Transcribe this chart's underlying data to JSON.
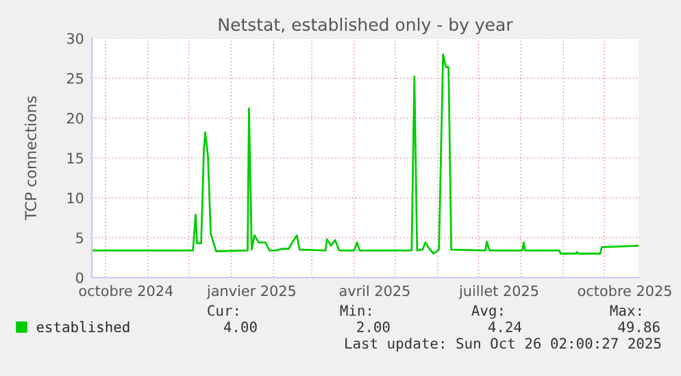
{
  "chart_data": {
    "type": "line",
    "title": "Netstat, established only - by year",
    "ylabel": "TCP connections",
    "xlim": [
      "2024-09-21",
      "2025-10-26"
    ],
    "ylim": [
      0,
      30
    ],
    "yticks": [
      0,
      5,
      10,
      15,
      20,
      25,
      30
    ],
    "xticks": [
      {
        "value": "2024-10-01",
        "label": null
      },
      {
        "value": "2024-10-16",
        "label": "octobre 2024"
      },
      {
        "value": "2024-11-01",
        "label": null
      },
      {
        "value": "2024-12-01",
        "label": null
      },
      {
        "value": "2025-01-01",
        "label": null
      },
      {
        "value": "2025-01-16",
        "label": "janvier 2025"
      },
      {
        "value": "2025-02-01",
        "label": null
      },
      {
        "value": "2025-03-01",
        "label": null
      },
      {
        "value": "2025-04-01",
        "label": null
      },
      {
        "value": "2025-04-16",
        "label": "avril 2025"
      },
      {
        "value": "2025-05-01",
        "label": null
      },
      {
        "value": "2025-06-01",
        "label": null
      },
      {
        "value": "2025-07-01",
        "label": null
      },
      {
        "value": "2025-07-16",
        "label": "juillet 2025"
      },
      {
        "value": "2025-08-01",
        "label": null
      },
      {
        "value": "2025-09-01",
        "label": null
      },
      {
        "value": "2025-10-01",
        "label": null
      },
      {
        "value": "2025-10-16",
        "label": "octobre 2025"
      }
    ],
    "grid": true,
    "legend": "bottom",
    "series": [
      {
        "name": "established",
        "color": "#00cc00",
        "x": [
          "2024-09-22",
          "2024-12-04",
          "2024-12-06",
          "2024-12-07",
          "2024-12-10",
          "2024-12-12",
          "2024-12-13",
          "2024-12-15",
          "2024-12-17",
          "2024-12-21",
          "2025-01-13",
          "2025-01-14",
          "2025-01-16",
          "2025-01-18",
          "2025-01-21",
          "2025-01-26",
          "2025-01-29",
          "2025-02-03",
          "2025-02-07",
          "2025-02-12",
          "2025-02-15",
          "2025-02-18",
          "2025-02-20",
          "2025-03-11",
          "2025-03-12",
          "2025-03-15",
          "2025-03-18",
          "2025-03-21",
          "2025-04-01",
          "2025-04-03",
          "2025-04-05",
          "2025-05-13",
          "2025-05-15",
          "2025-05-17",
          "2025-05-21",
          "2025-05-23",
          "2025-05-26",
          "2025-05-29",
          "2025-06-02",
          "2025-06-05",
          "2025-06-07",
          "2025-06-09",
          "2025-06-11",
          "2025-07-06",
          "2025-07-07",
          "2025-07-09",
          "2025-08-02",
          "2025-08-03",
          "2025-08-04",
          "2025-08-29",
          "2025-08-30",
          "2025-09-10",
          "2025-09-11",
          "2025-09-12",
          "2025-09-28",
          "2025-09-29",
          "2025-10-26"
        ],
        "values": [
          3.4,
          3.4,
          7.9,
          4.3,
          4.3,
          16,
          18.2,
          15.2,
          5.5,
          3.3,
          3.4,
          21.2,
          3.5,
          5.3,
          4.4,
          4.4,
          3.4,
          3.4,
          3.6,
          3.6,
          4.5,
          5.3,
          3.5,
          3.4,
          4.8,
          4.0,
          4.7,
          3.4,
          3.4,
          4.4,
          3.4,
          3.4,
          25.2,
          3.4,
          3.5,
          4.4,
          3.6,
          3.0,
          3.5,
          28,
          26.4,
          26.4,
          3.5,
          3.4,
          4.5,
          3.4,
          3.4,
          4.4,
          3.4,
          3.4,
          3.0,
          3.0,
          3.2,
          3.0,
          3.0,
          3.8,
          4.0
        ]
      }
    ],
    "annotations": [
      "Cur:",
      "Min:",
      "Avg:",
      "Max:",
      "4.00",
      "2.00",
      "4.24",
      "49.86",
      "Last update: Sun Oct 26 02:00:27 2025"
    ]
  }
}
